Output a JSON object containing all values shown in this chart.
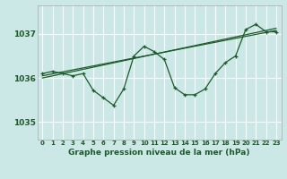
{
  "title": "Graphe pression niveau de la mer (hPa)",
  "bg_color": "#cce8e6",
  "grid_color": "#ffffff",
  "line_color": "#1a5c28",
  "xlim": [
    -0.5,
    23.5
  ],
  "ylim": [
    1034.6,
    1037.65
  ],
  "yticks": [
    1035,
    1036,
    1037
  ],
  "xticks": [
    0,
    1,
    2,
    3,
    4,
    5,
    6,
    7,
    8,
    9,
    10,
    11,
    12,
    13,
    14,
    15,
    16,
    17,
    18,
    19,
    20,
    21,
    22,
    23
  ],
  "series1_x": [
    0,
    1,
    2,
    3,
    4,
    5,
    6,
    7,
    8,
    9,
    10,
    11,
    12,
    13,
    14,
    15,
    16,
    17,
    18,
    19,
    20,
    21,
    22,
    23
  ],
  "series1_y": [
    1036.1,
    1036.15,
    1036.1,
    1036.05,
    1036.1,
    1035.72,
    1035.55,
    1035.38,
    1035.75,
    1036.5,
    1036.72,
    1036.6,
    1036.42,
    1035.78,
    1035.62,
    1035.62,
    1035.75,
    1036.1,
    1036.35,
    1036.5,
    1037.1,
    1037.22,
    1037.05,
    1037.05
  ],
  "trend1_x": [
    0,
    23
  ],
  "trend1_y": [
    1036.05,
    1037.08
  ],
  "trend2_x": [
    0,
    23
  ],
  "trend2_y": [
    1036.0,
    1037.13
  ],
  "xlabel_fontsize": 6.5,
  "xtick_fontsize": 5.0,
  "ytick_fontsize": 6.5
}
